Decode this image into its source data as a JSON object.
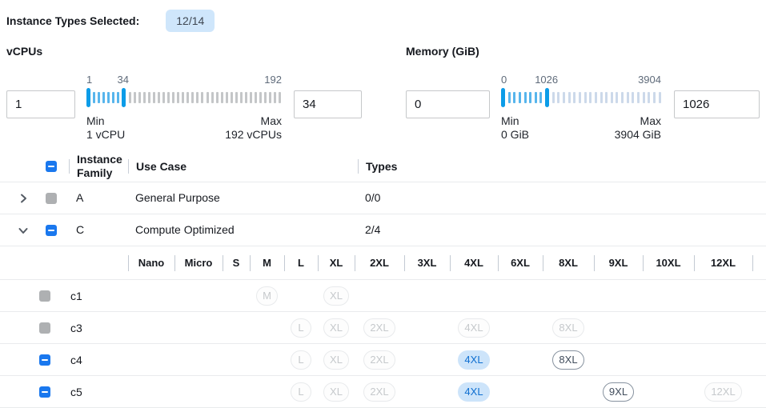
{
  "header": {
    "label": "Instance Types Selected:",
    "badge": "12/14"
  },
  "colors": {
    "accent_blue": "#1a78ee",
    "slider_handle": "#0b9ce8",
    "slider_range_tick": "#57b5ec",
    "badge_bg": "#cfe6fb",
    "selected_pill_bg": "#cde4fa",
    "selected_pill_text": "#0f6fd1",
    "disabled_gray": "#aeb0b2"
  },
  "filters": {
    "vcpus": {
      "title": "vCPUs",
      "min_input": "1",
      "max_input": "34",
      "scale": {
        "start": "1",
        "current": "34",
        "end": "192"
      },
      "min_label": "Min",
      "min_value": "1 vCPU",
      "max_label": "Max",
      "max_value": "192 vCPUs",
      "slider": {
        "total_ticks": 40,
        "min_handle_index": 0,
        "max_handle_index": 7
      }
    },
    "memory": {
      "title": "Memory (GiB)",
      "min_input": "0",
      "max_input": "1026",
      "scale": {
        "start": "0",
        "current": "1026",
        "end": "3904"
      },
      "min_label": "Min",
      "min_value": "0 GiB",
      "max_label": "Max",
      "max_value": "3904 GiB",
      "slider": {
        "total_ticks": 30,
        "min_handle_index": 0,
        "max_handle_index": 8
      }
    }
  },
  "table": {
    "columns": {
      "family": "Instance Family",
      "use_case": "Use Case",
      "types": "Types"
    },
    "select_all_checkbox": "indeterminate",
    "family_rows": [
      {
        "id": "A",
        "use_case": "General Purpose",
        "types": "0/0",
        "expanded": false,
        "checkbox": "disabled"
      },
      {
        "id": "C",
        "use_case": "Compute Optimized",
        "types": "2/4",
        "expanded": true,
        "checkbox": "indeterminate"
      }
    ],
    "sizes": [
      "Nano",
      "Micro",
      "S",
      "M",
      "L",
      "XL",
      "2XL",
      "3XL",
      "4XL",
      "6XL",
      "8XL",
      "9XL",
      "10XL",
      "12XL"
    ],
    "instance_rows": [
      {
        "name": "c1",
        "checkbox": "disabled",
        "pills": {
          "M": "disabled",
          "XL": "disabled"
        }
      },
      {
        "name": "c3",
        "checkbox": "disabled",
        "pills": {
          "L": "disabled",
          "XL": "disabled",
          "2XL": "disabled",
          "4XL": "disabled",
          "8XL": "disabled"
        }
      },
      {
        "name": "c4",
        "checkbox": "indeterminate",
        "pills": {
          "L": "disabled",
          "XL": "disabled",
          "2XL": "disabled",
          "4XL": "selected",
          "8XL": "enabled"
        }
      },
      {
        "name": "c5",
        "checkbox": "indeterminate",
        "pills": {
          "L": "disabled",
          "XL": "disabled",
          "2XL": "disabled",
          "4XL": "selected",
          "9XL": "enabled",
          "12XL": "disabled"
        }
      }
    ]
  }
}
